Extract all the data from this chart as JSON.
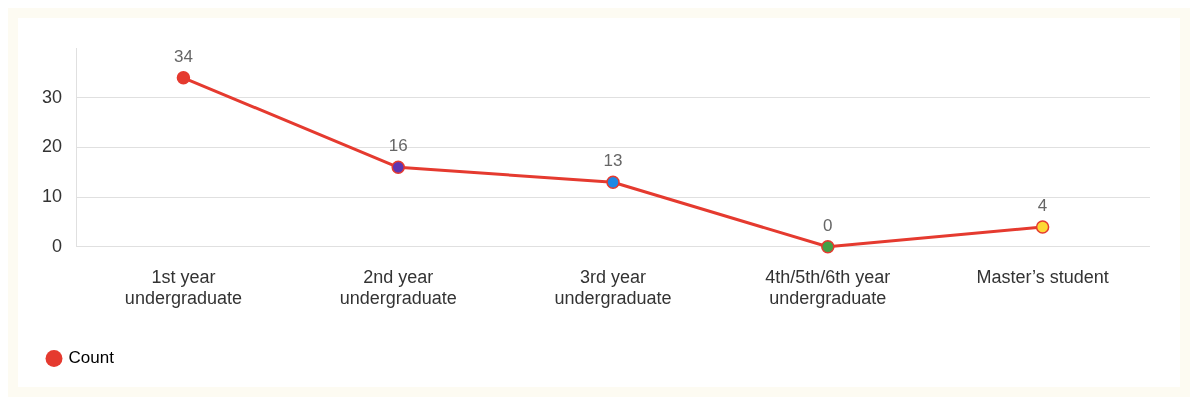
{
  "chart_data": {
    "type": "line",
    "categories": [
      "1st year undergraduate",
      "2nd year undergraduate",
      "3rd year undergraduate",
      "4th/5th/6th year undergraduate",
      "Master’s student"
    ],
    "series": [
      {
        "name": "Count",
        "color": "#e53a2f",
        "colors": [
          "#e53a2f",
          "#5e35b1",
          "#1e88e5",
          "#43a047",
          "#fdd835"
        ],
        "values": [
          34,
          16,
          13,
          0,
          4
        ]
      }
    ],
    "ylim": [
      0,
      40
    ],
    "yticks": [
      0,
      10,
      20,
      30
    ],
    "grid": "y",
    "legend": "bottom left",
    "data_labels": true,
    "marker": "circle",
    "line_style": "solid"
  }
}
